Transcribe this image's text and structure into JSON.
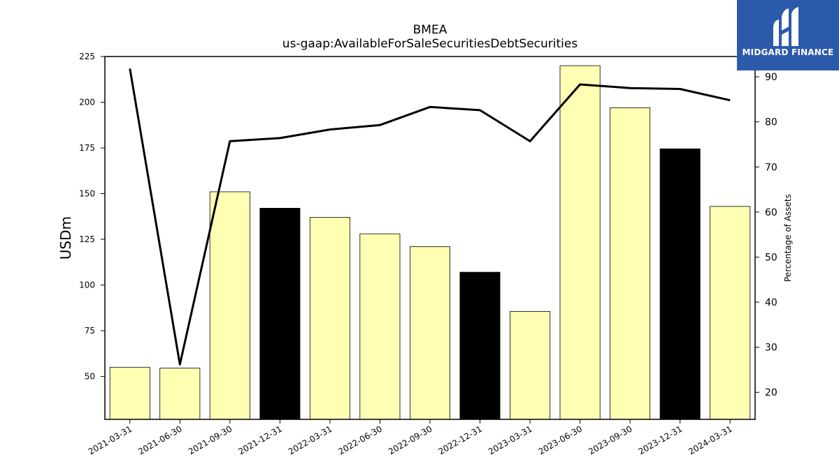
{
  "logo": {
    "text": "MIDGARD FINANCE",
    "icon": "midgard-logo-icon",
    "bg": "#2b5aab"
  },
  "chart_data": {
    "type": "bar",
    "title": "BMEA",
    "subtitle": "us-gaap:AvailableForSaleSecuritiesDebtSecurities",
    "ylabel": "USDm",
    "y2label": "Percentage of Assets",
    "categories": [
      "2021-03-31",
      "2021-06-30",
      "2021-09-30",
      "2021-12-31",
      "2022-03-31",
      "2022-06-30",
      "2022-09-30",
      "2022-12-31",
      "2023-03-31",
      "2023-06-30",
      "2023-09-30",
      "2023-12-31",
      "2024-03-31"
    ],
    "series": [
      {
        "values": [
          55,
          54.5,
          151,
          142,
          137,
          128,
          121,
          107,
          85.5,
          220,
          197,
          174.5,
          143
        ],
        "colors": [
          "#ffffb3",
          "#ffffb3",
          "#ffffb3",
          "#000000",
          "#ffffb3",
          "#ffffb3",
          "#ffffb3",
          "#000000",
          "#ffffb3",
          "#ffffb3",
          "#ffffb3",
          "#000000",
          "#ffffb3"
        ]
      },
      {
        "axis": "right",
        "values": [
          91.8,
          26.2,
          75.7,
          76.4,
          78.3,
          79.3,
          83.3,
          82.6,
          75.7,
          88.3,
          87.5,
          87.3,
          84.8
        ],
        "color": "#000000"
      }
    ],
    "ylim": [
      26.5,
      225
    ],
    "yticks": [
      50,
      75,
      100,
      125,
      150,
      175,
      200,
      225
    ],
    "y2lim": [
      14,
      94.5
    ],
    "y2ticks": [
      20,
      30,
      40,
      50,
      60,
      70,
      80,
      90
    ],
    "grid": false,
    "legend": "none"
  }
}
